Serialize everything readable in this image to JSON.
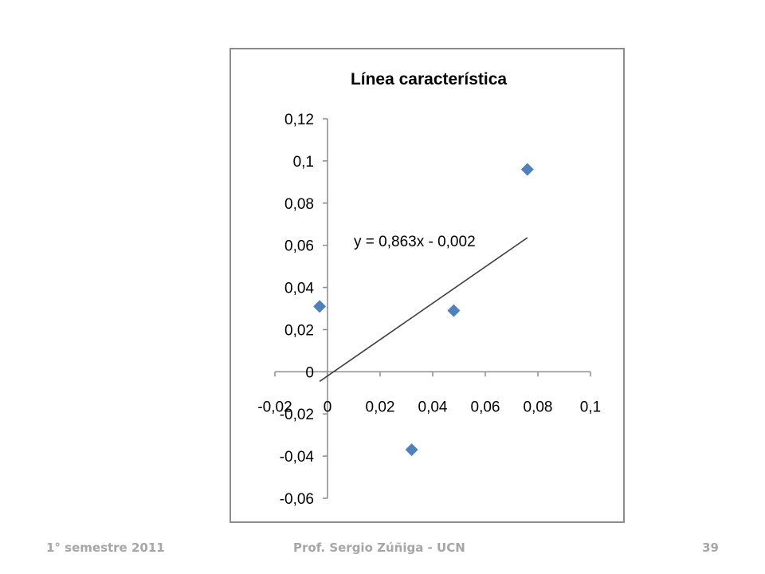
{
  "footer": {
    "left": "1° semestre 2011",
    "center": "Prof. Sergio Zúñiga - UCN",
    "page_number": "39"
  },
  "chart_data": {
    "type": "scatter",
    "title": "Línea característica",
    "xlabel": "",
    "ylabel": "",
    "xlim": [
      -0.02,
      0.1
    ],
    "ylim": [
      -0.06,
      0.12
    ],
    "x_ticks": [
      "-0,02",
      "0",
      "0,02",
      "0,04",
      "0,06",
      "0,08",
      "0,1"
    ],
    "y_ticks": [
      "-0,06",
      "-0,04",
      "-0,02",
      "0",
      "0,02",
      "0,04",
      "0,06",
      "0,08",
      "0,1",
      "0,12"
    ],
    "x_tick_values": [
      -0.02,
      0,
      0.02,
      0.04,
      0.06,
      0.08,
      0.1
    ],
    "y_tick_values": [
      -0.06,
      -0.04,
      -0.02,
      0,
      0.02,
      0.04,
      0.06,
      0.08,
      0.1,
      0.12
    ],
    "grid": false,
    "series": [
      {
        "points": [
          {
            "x": -0.003,
            "y": 0.031
          },
          {
            "x": 0.032,
            "y": -0.037
          },
          {
            "x": 0.048,
            "y": 0.029
          },
          {
            "x": 0.076,
            "y": 0.096
          }
        ],
        "marker": "diamond",
        "color": "#4f81bd"
      }
    ],
    "trendline": {
      "slope": 0.863,
      "intercept": -0.002,
      "x_range": [
        -0.003,
        0.076
      ],
      "label": "y = 0,863x - 0,002",
      "color": "#404040"
    }
  }
}
